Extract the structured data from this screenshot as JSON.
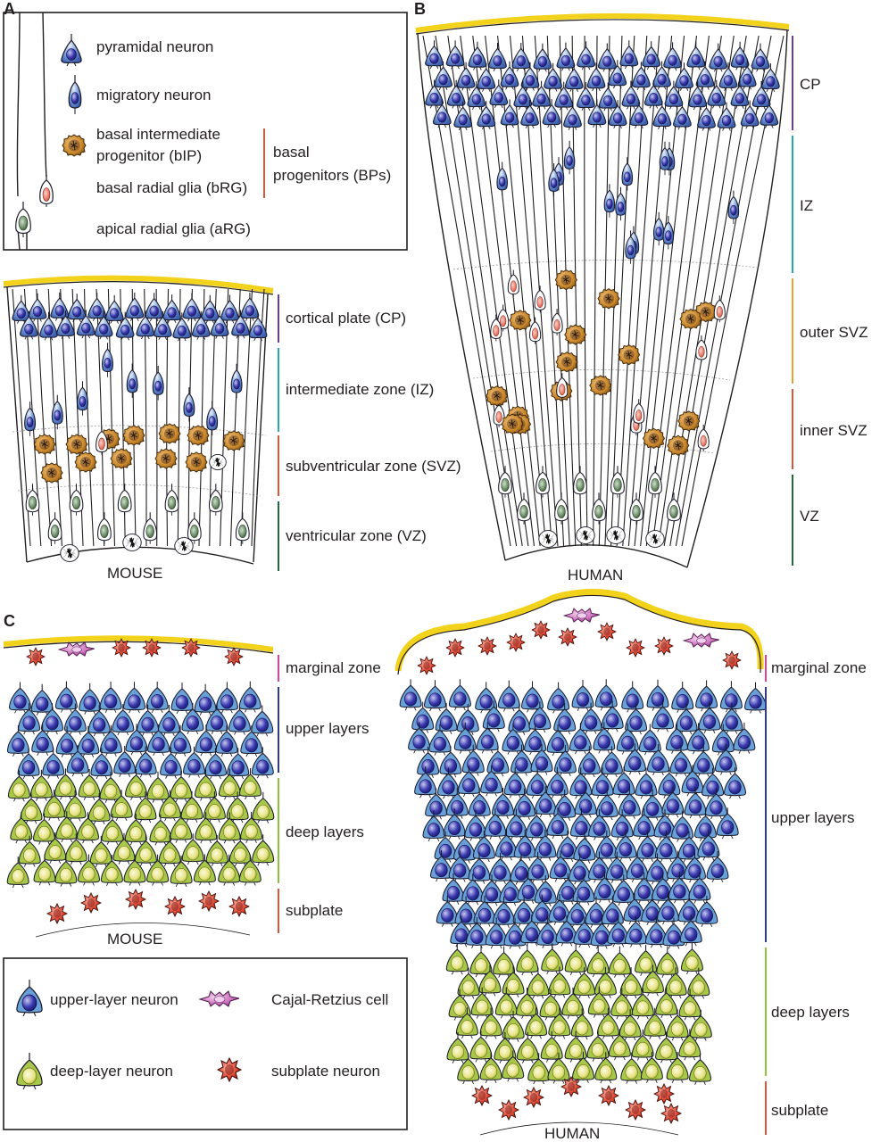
{
  "panels": {
    "a": "A",
    "b": "B",
    "c": "C"
  },
  "legend_a": {
    "pyramidal": "pyramidal neuron",
    "migratory": "migratory neuron",
    "bip_line1": "basal intermediate",
    "bip_line2": "progenitor (bIP)",
    "brg": "basal radial glia (bRG)",
    "arg": "apical radial glia (aRG)",
    "bp_line1": "basal",
    "bp_line2": "progenitors (BPs)"
  },
  "mouse_b": {
    "zones": [
      {
        "label": "cortical plate (CP)",
        "color": "#6a3d9a"
      },
      {
        "label": "intermediate zone (IZ)",
        "color": "#2aa7b8"
      },
      {
        "label": "subventricular zone (SVZ)",
        "color": "#e0533c"
      },
      {
        "label": "ventricular zone (VZ)",
        "color": "#1d6b3a"
      }
    ],
    "caption": "MOUSE"
  },
  "human_b": {
    "zones": [
      {
        "label": "CP",
        "color": "#6a3d9a"
      },
      {
        "label": "IZ",
        "color": "#2aa7b8"
      },
      {
        "label": "outer SVZ",
        "color": "#f0a030"
      },
      {
        "label": "inner SVZ",
        "color": "#e0533c"
      },
      {
        "label": "VZ",
        "color": "#1d6b3a"
      }
    ],
    "caption": "HUMAN"
  },
  "mouse_c": {
    "zones": [
      {
        "label": "marginal zone",
        "color": "#e0409a"
      },
      {
        "label": "upper layers",
        "color": "#2b3a9a"
      },
      {
        "label": "deep layers",
        "color": "#8cc43c"
      },
      {
        "label": "subplate",
        "color": "#e0533c"
      }
    ],
    "caption": "MOUSE"
  },
  "human_c": {
    "zones": [
      {
        "label": "marginal zone",
        "color": "#e0409a"
      },
      {
        "label": "upper layers",
        "color": "#2b3a9a"
      },
      {
        "label": "deep layers",
        "color": "#8cc43c"
      },
      {
        "label": "subplate",
        "color": "#e0533c"
      }
    ],
    "caption": "HUMAN"
  },
  "legend_c": {
    "upper": "upper-layer neuron",
    "cajal": "Cajal-Retzius cell",
    "deep": "deep-layer neuron",
    "subplate": "subplate neuron"
  },
  "colors": {
    "pyramidal_blue": "#5a7fc4",
    "progenitor_brown": "#c8862a",
    "brg_red": "#e87a6a",
    "arg_green": "#5d7a5a",
    "deep_yellow": "#e4e07a",
    "cajal_pink": "#c060b0",
    "subplate_red": "#d8402c",
    "pia_yellow": "#f2d21a"
  }
}
